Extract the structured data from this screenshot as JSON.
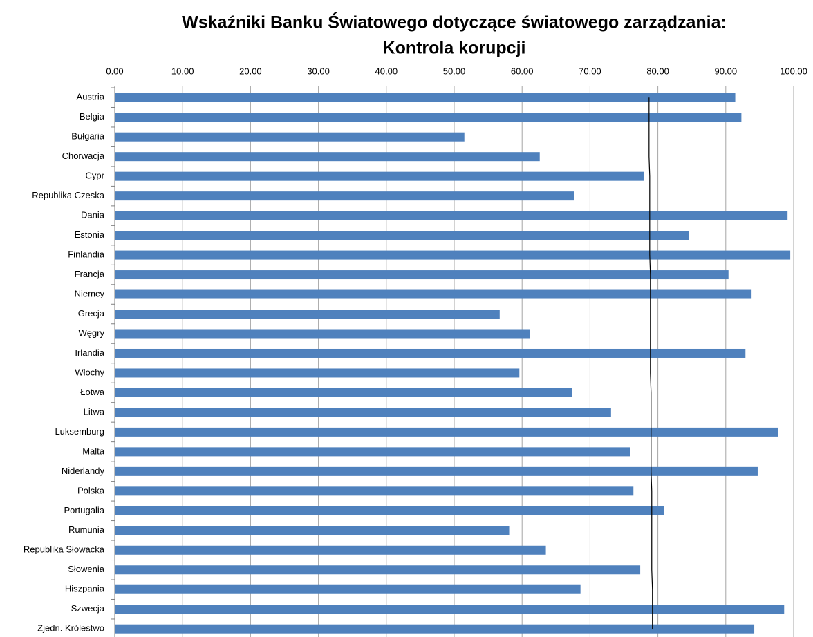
{
  "chart_data": {
    "type": "bar",
    "orientation": "horizontal",
    "title": [
      "Wskaźniki Banku Światowego dotyczące światowego zarządzania:",
      "Kontrola korupcji"
    ],
    "categories": [
      "Austria",
      "Belgia",
      "Bułgaria",
      "Chorwacja",
      "Cypr",
      "Republika Czeska",
      "Dania",
      "Estonia",
      "Finlandia",
      "Francja",
      "Niemcy",
      "Grecja",
      "Węgry",
      "Irlandia",
      "Włochy",
      "Łotwa",
      "Litwa",
      "Luksemburg",
      "Malta",
      "Niderlandy",
      "Polska",
      "Portugalia",
      "Rumunia",
      "Republika Słowacka",
      "Słowenia",
      "Hiszpania",
      "Szwecja",
      "Zjedn. Królestwo"
    ],
    "series": [
      {
        "type": "bar",
        "color": "#4f81bd",
        "values": [
          91.4,
          92.3,
          51.5,
          62.6,
          77.9,
          67.7,
          99.1,
          84.6,
          99.5,
          90.4,
          93.8,
          56.7,
          61.1,
          92.9,
          59.6,
          67.4,
          73.1,
          97.7,
          75.9,
          94.7,
          76.4,
          80.9,
          58.1,
          63.5,
          77.4,
          68.6,
          98.6,
          94.2
        ]
      },
      {
        "type": "line",
        "color": "#000000",
        "values": [
          78.7,
          78.7,
          78.7,
          78.7,
          78.8,
          78.8,
          78.8,
          78.8,
          78.8,
          78.9,
          78.9,
          78.9,
          78.9,
          78.9,
          78.9,
          79.0,
          79.0,
          79.0,
          79.0,
          79.0,
          79.1,
          79.1,
          79.1,
          79.1,
          79.1,
          79.2,
          79.2,
          79.2
        ]
      }
    ],
    "xlim": [
      0,
      100
    ],
    "xticks": [
      {
        "value": 0,
        "label": "0.00"
      },
      {
        "value": 10,
        "label": "10.00"
      },
      {
        "value": 20,
        "label": "20.00"
      },
      {
        "value": 30,
        "label": "30.00"
      },
      {
        "value": 40,
        "label": "40.00"
      },
      {
        "value": 50,
        "label": "50.00"
      },
      {
        "value": 60,
        "label": "60.00"
      },
      {
        "value": 70,
        "label": "70.00"
      },
      {
        "value": 80,
        "label": "80.00"
      },
      {
        "value": 90,
        "label": "90.00"
      },
      {
        "value": 100,
        "label": "100.00"
      }
    ],
    "grid": true
  }
}
